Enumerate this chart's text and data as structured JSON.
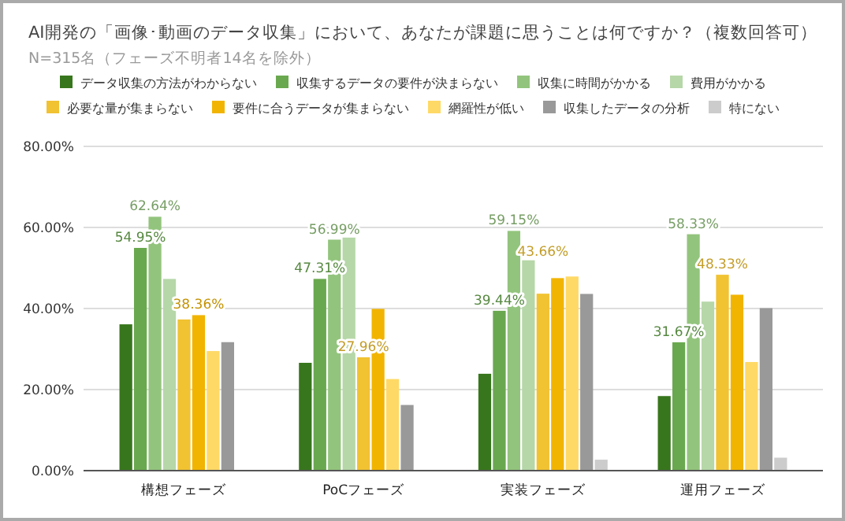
{
  "chart_data": {
    "type": "bar",
    "title": "AI開発の「画像･動画のデータ収集」において、あなたが課題に思うことは何ですか？（複数回答可）",
    "subtitle": "N=315名（フェーズ不明者14名を除外）",
    "categories": [
      "構想フェーズ",
      "PoCフェーズ",
      "実装フェーズ",
      "運用フェーズ"
    ],
    "series": [
      {
        "name": "データ収集の方法がわからない",
        "color": "#38761d",
        "values": [
          36.1,
          26.6,
          23.9,
          18.4
        ]
      },
      {
        "name": "収集するデータの要件が決まらない",
        "color": "#6aa84f",
        "values": [
          54.95,
          47.31,
          39.44,
          31.67
        ],
        "value_labels": [
          "54.95%",
          "47.31%",
          "39.44%",
          "31.67%"
        ]
      },
      {
        "name": "収集に時間がかかる",
        "color": "#93c47d",
        "values": [
          62.64,
          56.99,
          59.15,
          58.33
        ],
        "value_labels": [
          "62.64%",
          "56.99%",
          "59.15%",
          "58.33%"
        ]
      },
      {
        "name": "費用がかかる",
        "color": "#b6d7a8",
        "values": [
          47.3,
          57.5,
          51.9,
          41.7
        ]
      },
      {
        "name": "必要な量が集まらない",
        "color": "#f1c232",
        "values": [
          37.3,
          27.96,
          43.66,
          48.33
        ],
        "value_labels": [
          null,
          "27.96%",
          "43.66%",
          "48.33%"
        ]
      },
      {
        "name": "要件に合うデータが集まらない",
        "color": "#f1b400",
        "values": [
          38.36,
          39.9,
          47.5,
          43.4
        ],
        "value_labels": [
          "38.36%",
          null,
          null,
          null
        ]
      },
      {
        "name": "網羅性が低い",
        "color": "#ffd966",
        "values": [
          29.5,
          22.6,
          47.9,
          26.8
        ]
      },
      {
        "name": "収集したデータの分析",
        "color": "#999999",
        "values": [
          31.7,
          16.2,
          43.6,
          40.1
        ]
      },
      {
        "name": "特にない",
        "color": "#cccccc",
        "values": [
          0,
          0,
          2.7,
          3.2
        ]
      }
    ],
    "ylim": [
      0,
      80
    ],
    "yticks": [
      {
        "value": 0,
        "label": "0.00%"
      },
      {
        "value": 20,
        "label": "20.00%"
      },
      {
        "value": 40,
        "label": "40.00%"
      },
      {
        "value": 60,
        "label": "60.00%"
      },
      {
        "value": 80,
        "label": "80.00%"
      }
    ],
    "grid": "y",
    "legend": "top"
  }
}
